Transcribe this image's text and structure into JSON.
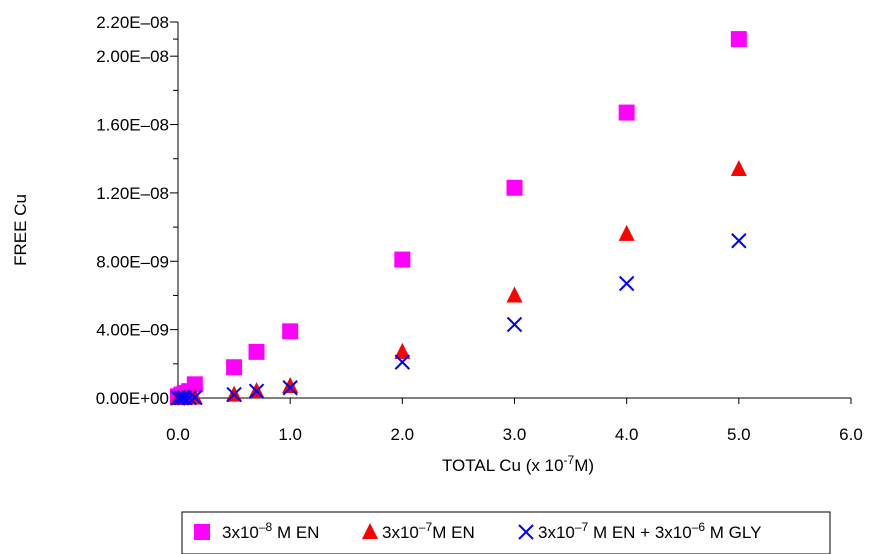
{
  "chart_data": {
    "type": "scatter",
    "title": "",
    "xlabel": {
      "pre": "TOTAL Cu (x 10",
      "sup": "-7",
      "post": "M)"
    },
    "ylabel": "FREE Cu",
    "xlim": [
      0,
      6.0
    ],
    "ylim": [
      0,
      2.2e-08
    ],
    "x_ticks": [
      0,
      1,
      2,
      3,
      4,
      5,
      6
    ],
    "x_tick_labels": [
      "0.0",
      "1.0",
      "2.0",
      "3.0",
      "4.0",
      "5.0",
      "6.0"
    ],
    "y_ticks": [
      0,
      4e-09,
      8e-09,
      1.2e-08,
      1.6e-08,
      2e-08,
      2.2e-08
    ],
    "y_tick_labels": [
      "0.00E+00",
      "4.00E–09",
      "8.00E–09",
      "1.20E–08",
      "1.60E–08",
      "2.00E–08",
      "2.20E–08"
    ],
    "y_minor_ticks": [
      2e-09,
      6e-09,
      1e-08,
      1.4e-08,
      1.8e-08,
      2.1e-08
    ],
    "grid": false,
    "legend_position": "bottom",
    "series": [
      {
        "name": {
          "pre": "3x10",
          "sup": "–8",
          "post": " M EN"
        },
        "marker": "square",
        "color": "#ff00ff",
        "x": [
          0.0,
          0.03,
          0.06,
          0.1,
          0.15,
          0.5,
          0.7,
          1.0,
          2.0,
          3.0,
          4.0,
          5.0
        ],
        "y": [
          1e-10,
          2e-10,
          3e-10,
          4e-10,
          8e-10,
          1.8e-09,
          2.7e-09,
          3.9e-09,
          8.1e-09,
          1.23e-08,
          1.67e-08,
          2.1e-08
        ]
      },
      {
        "name": {
          "pre": "3x10",
          "sup": "–7",
          "post": "M EN"
        },
        "marker": "triangle",
        "color": "#ff0000",
        "x": [
          0.0,
          0.03,
          0.06,
          0.1,
          0.15,
          0.5,
          0.7,
          1.0,
          2.0,
          3.0,
          4.0,
          5.0
        ],
        "y": [
          0.0,
          1e-11,
          1e-11,
          2e-11,
          3e-11,
          2e-10,
          4e-10,
          7e-10,
          2.7e-09,
          6e-09,
          9.6e-09,
          1.34e-08
        ]
      },
      {
        "name": {
          "pre": "3x10",
          "sup": "–7",
          "post": " M EN + 3x10",
          "sup2": "–6",
          "post2": " M GLY"
        },
        "marker": "x",
        "color": "#0000ff",
        "x": [
          0.0,
          0.03,
          0.06,
          0.1,
          0.15,
          0.5,
          0.7,
          1.0,
          2.0,
          3.0,
          4.0,
          5.0
        ],
        "y": [
          0.0,
          1e-11,
          1e-11,
          2e-11,
          3e-11,
          2e-10,
          4e-10,
          6e-10,
          2.1e-09,
          4.3e-09,
          6.7e-09,
          9.2e-09
        ]
      }
    ]
  }
}
